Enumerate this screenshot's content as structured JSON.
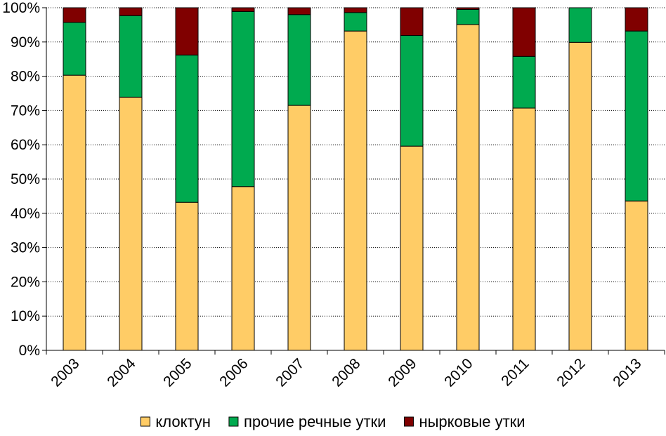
{
  "chart_data": {
    "type": "bar",
    "stacked": true,
    "normalized": true,
    "title": "",
    "xlabel": "",
    "ylabel": "",
    "ylim": [
      0,
      100
    ],
    "y_ticks": [
      0,
      10,
      20,
      30,
      40,
      50,
      60,
      70,
      80,
      90,
      100
    ],
    "y_tick_labels": [
      "0%",
      "10%",
      "20%",
      "30%",
      "40%",
      "50%",
      "60%",
      "70%",
      "80%",
      "90%",
      "100%"
    ],
    "grid": "horizontal dotted",
    "legend_position": "bottom",
    "categories": [
      "2003",
      "2004",
      "2005",
      "2006",
      "2007",
      "2008",
      "2009",
      "2010",
      "2011",
      "2012",
      "2013"
    ],
    "series": [
      {
        "name": "клоктун",
        "color": "#FFCC66",
        "values": [
          80.3,
          73.9,
          43.2,
          47.8,
          71.5,
          93.2,
          59.6,
          95.1,
          70.7,
          89.9,
          43.6
        ]
      },
      {
        "name": "прочие речные утки",
        "color": "#00AA4F",
        "values": [
          15.4,
          23.8,
          43.0,
          51.1,
          26.5,
          5.4,
          32.3,
          4.4,
          15.1,
          10.1,
          49.6
        ]
      },
      {
        "name": "нырковые утки",
        "color": "#800000",
        "values": [
          4.3,
          2.3,
          13.8,
          1.1,
          2.0,
          1.4,
          8.1,
          0.5,
          14.2,
          0.0,
          6.8
        ]
      }
    ]
  }
}
